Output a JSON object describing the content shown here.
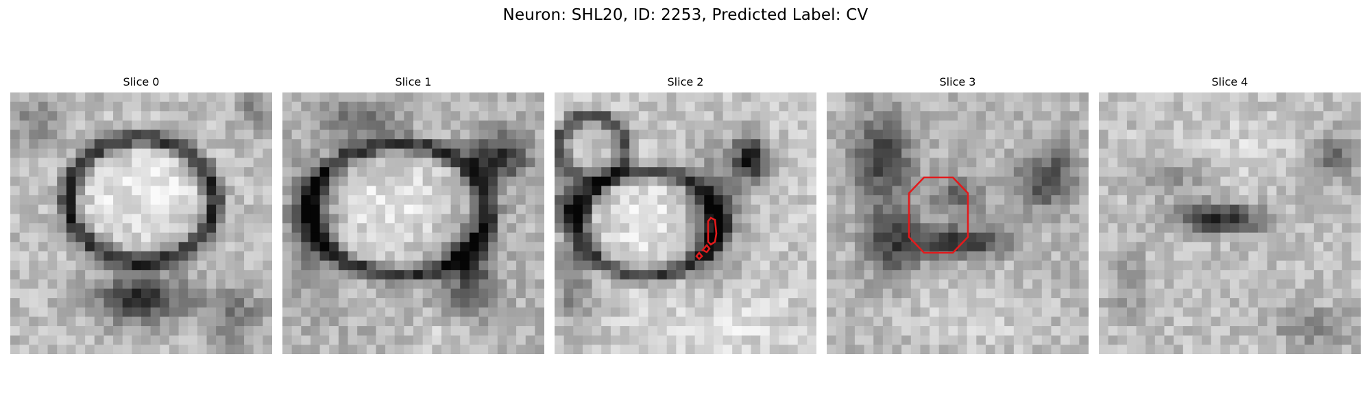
{
  "figure": {
    "title": "Neuron: SHL20, ID: 2253, Predicted Label: CV"
  },
  "panels": [
    {
      "title": "Slice 0",
      "has_contour": false
    },
    {
      "title": "Slice 1",
      "has_contour": false
    },
    {
      "title": "Slice 2",
      "has_contour": true
    },
    {
      "title": "Slice 3",
      "has_contour": true
    },
    {
      "title": "Slice 4",
      "has_contour": false
    }
  ],
  "colors": {
    "contour": "#e31a1c",
    "colormap": "gray"
  }
}
